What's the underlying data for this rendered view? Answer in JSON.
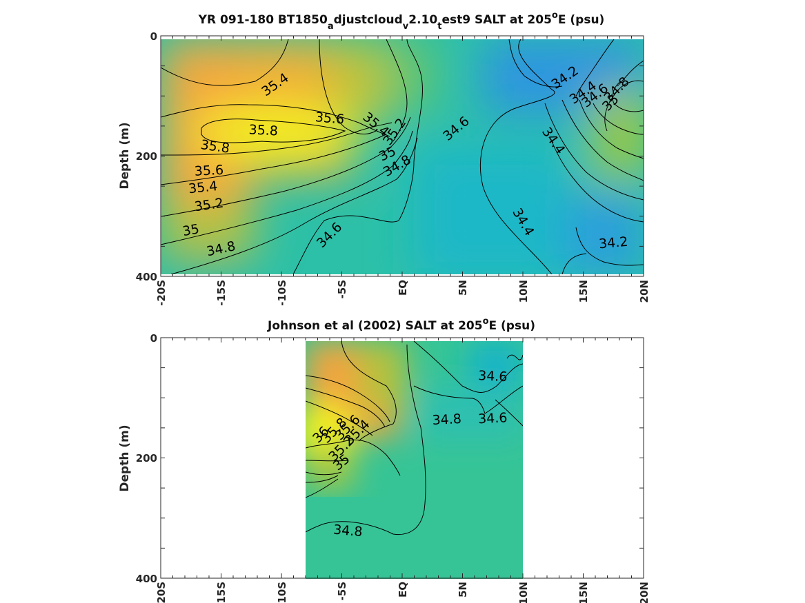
{
  "chart_data": [
    {
      "type": "heatmap",
      "title": {
        "main": "YR 091-180 BT1850",
        "sub1": "a",
        "mid1": "djustcloud",
        "sub2": "v",
        "mid2": "2.10",
        "sub3": "t",
        "mid3": "est9 SALT at 205",
        "sup": "o",
        "end": "E (psu)"
      },
      "ylabel": "Depth (m)",
      "x_ticks": [
        "-20S",
        "-15S",
        "-10S",
        "-5S",
        "EQ",
        "5N",
        "10N",
        "15N",
        "20N"
      ],
      "y_ticks": [
        "0",
        "200",
        "400"
      ],
      "xlim": [
        -20,
        20
      ],
      "ylim": [
        0,
        400
      ],
      "data_extent": {
        "x": [
          -20,
          20
        ],
        "depth": [
          5,
          395
        ]
      },
      "colors": {
        "high": "#f2f21e",
        "mid_high": "#f5a93c",
        "mid": "#3fbf9a",
        "low": "#1fb5c9",
        "lowest": "#2f95e0"
      },
      "contour_labels": [
        {
          "text": "35.4",
          "lat": -10.5,
          "depth": 82,
          "rot": -35
        },
        {
          "text": "35.6",
          "lat": -6.0,
          "depth": 138,
          "rot": 5
        },
        {
          "text": "35.8",
          "lat": -11.5,
          "depth": 158,
          "rot": 3
        },
        {
          "text": "35.8",
          "lat": -15.5,
          "depth": 185,
          "rot": 8
        },
        {
          "text": "35.6",
          "lat": -16.0,
          "depth": 225,
          "rot": -3
        },
        {
          "text": "35.4",
          "lat": -16.5,
          "depth": 253,
          "rot": -6
        },
        {
          "text": "35.2",
          "lat": -16.0,
          "depth": 282,
          "rot": -8
        },
        {
          "text": "35",
          "lat": -17.5,
          "depth": 324,
          "rot": -10
        },
        {
          "text": "34.8",
          "lat": -15.0,
          "depth": 355,
          "rot": -12
        },
        {
          "text": "35.4",
          "lat": -2.2,
          "depth": 148,
          "rot": 40
        },
        {
          "text": "35.2",
          "lat": -0.6,
          "depth": 160,
          "rot": -55
        },
        {
          "text": "35",
          "lat": -1.2,
          "depth": 197,
          "rot": -25
        },
        {
          "text": "34.8",
          "lat": -0.4,
          "depth": 217,
          "rot": -30
        },
        {
          "text": "34.6",
          "lat": -6.0,
          "depth": 332,
          "rot": -45
        },
        {
          "text": "34.6",
          "lat": 4.5,
          "depth": 155,
          "rot": -40
        },
        {
          "text": "34.4",
          "lat": 12.5,
          "depth": 175,
          "rot": 55
        },
        {
          "text": "34.4",
          "lat": 10.0,
          "depth": 310,
          "rot": 60
        },
        {
          "text": "34.2",
          "lat": 13.5,
          "depth": 70,
          "rot": -35
        },
        {
          "text": "34.4",
          "lat": 15.0,
          "depth": 95,
          "rot": -35
        },
        {
          "text": "34.6",
          "lat": 16.0,
          "depth": 100,
          "rot": -38
        },
        {
          "text": "34.8",
          "lat": 17.8,
          "depth": 90,
          "rot": -45
        },
        {
          "text": "35",
          "lat": 17.3,
          "depth": 112,
          "rot": -45
        },
        {
          "text": "34.2",
          "lat": 17.5,
          "depth": 345,
          "rot": -5
        }
      ]
    },
    {
      "type": "heatmap",
      "title": {
        "main": "Johnson et al (2002) SALT at 205",
        "sup": "o",
        "end": "E (psu)"
      },
      "ylabel": "Depth (m)",
      "x_ticks": [
        "-20S",
        "-15S",
        "-10S",
        "-5S",
        "EQ",
        "5N",
        "10N",
        "15N",
        "20N"
      ],
      "y_ticks": [
        "0",
        "200",
        "400"
      ],
      "xlim": [
        -20,
        20
      ],
      "ylim": [
        0,
        400
      ],
      "data_extent": {
        "x": [
          -8,
          10
        ],
        "depth": [
          5,
          400
        ]
      },
      "contour_labels": [
        {
          "text": "34.6",
          "lat": 7.5,
          "depth": 65,
          "rot": 3
        },
        {
          "text": "34.8",
          "lat": 3.7,
          "depth": 137,
          "rot": -3
        },
        {
          "text": "34.6",
          "lat": 7.5,
          "depth": 135,
          "rot": -3
        },
        {
          "text": "36",
          "lat": -6.7,
          "depth": 162,
          "rot": -45
        },
        {
          "text": "35.8",
          "lat": -5.6,
          "depth": 155,
          "rot": -45
        },
        {
          "text": "35.6",
          "lat": -4.5,
          "depth": 150,
          "rot": -45
        },
        {
          "text": "35.4",
          "lat": -3.7,
          "depth": 158,
          "rot": -45
        },
        {
          "text": "35.2",
          "lat": -5.0,
          "depth": 185,
          "rot": -45
        },
        {
          "text": "35",
          "lat": -5.0,
          "depth": 208,
          "rot": -40
        },
        {
          "text": "34.8",
          "lat": -4.5,
          "depth": 322,
          "rot": 5
        }
      ]
    }
  ]
}
